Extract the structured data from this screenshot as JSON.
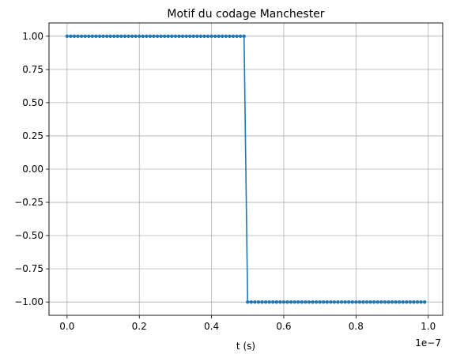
{
  "chart_data": {
    "type": "line",
    "title": "Motif du codage Manchester",
    "xlabel": "t (s)",
    "ylabel": "",
    "x_offset_label": "1e−7",
    "x_scale": 1e-07,
    "xlim": [
      -0.05,
      1.04
    ],
    "ylim": [
      -1.1,
      1.1
    ],
    "xticks": [
      0.0,
      0.2,
      0.4,
      0.6,
      0.8,
      1.0
    ],
    "xtick_labels": [
      "0.0",
      "0.2",
      "0.4",
      "0.6",
      "0.8",
      "1.0"
    ],
    "yticks": [
      1.0,
      0.75,
      0.5,
      0.25,
      0.0,
      -0.25,
      -0.5,
      -0.75,
      -1.0
    ],
    "ytick_labels": [
      "1.00",
      "0.75",
      "0.50",
      "0.25",
      "0.00",
      "−0.25",
      "−0.50",
      "−0.75",
      "−1.00"
    ],
    "grid": true,
    "series": [
      {
        "color": "#1f77b4",
        "marker": "dot",
        "sample_step": 1e-09,
        "segments": [
          {
            "t_start": 0.0,
            "t_end": 4.9e-08,
            "value": 1.0
          },
          {
            "t_start": 5e-08,
            "t_end": 9.9e-08,
            "value": -1.0
          }
        ]
      }
    ]
  }
}
